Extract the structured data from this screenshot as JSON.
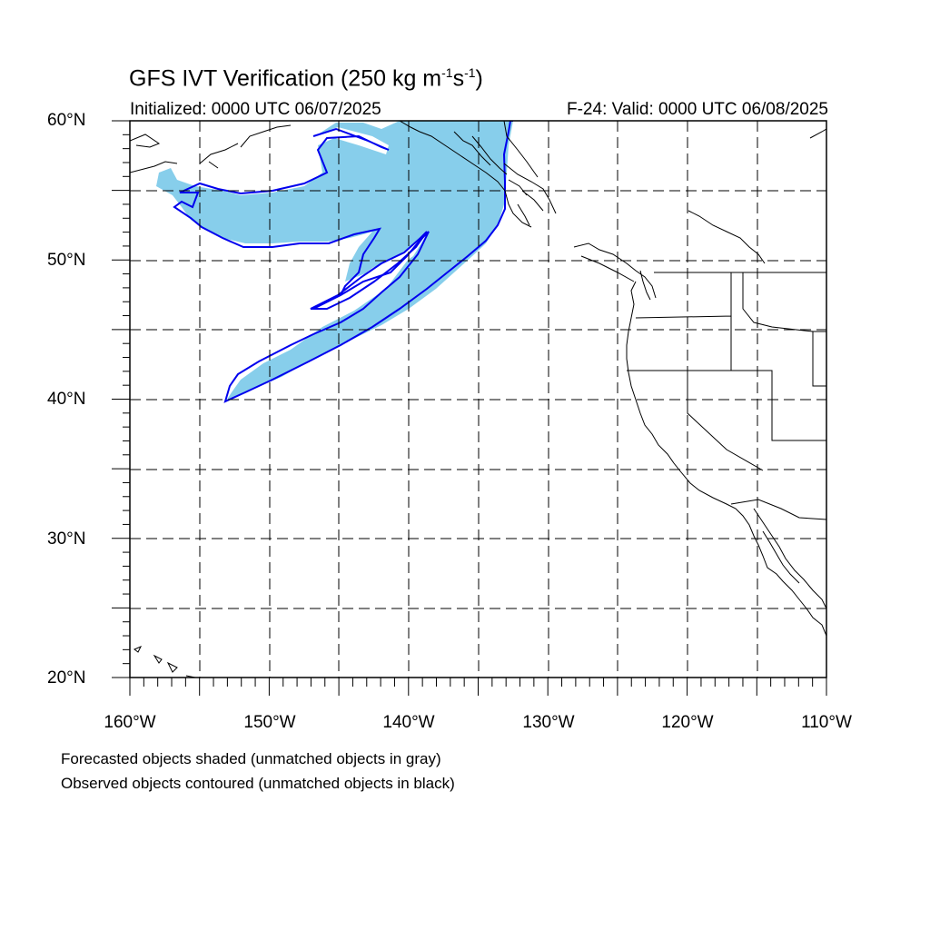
{
  "title": "GFS IVT Verification (250 kg m",
  "title_unit_exp1": "-1",
  "title_mid": "s",
  "title_unit_exp2": "-1",
  "title_close": ")",
  "initialized": "Initialized: 0000 UTC 06/07/2025",
  "valid": "F-24: Valid: 0000 UTC 06/08/2025",
  "lat_labels": [
    "60°N",
    "50°N",
    "40°N",
    "30°N",
    "20°N"
  ],
  "lon_labels": [
    "160°W",
    "150°W",
    "140°W",
    "130°W",
    "120°W",
    "110°W"
  ],
  "notes": [
    "Forecasted objects shaded (unmatched objects in gray)",
    "Observed objects contoured (unmatched objects in black)"
  ],
  "map": {
    "lon_range": [
      -160,
      -110
    ],
    "lat_range": [
      20,
      60
    ],
    "forecast_fill_color": "#87ceeb",
    "observed_contour_color": "#0000ee",
    "grid_style": "dashed",
    "grid_lons": [
      -155,
      -150,
      -145,
      -140,
      -135,
      -130,
      -125,
      -120,
      -115
    ],
    "grid_lats": [
      25,
      30,
      35,
      40,
      45,
      50,
      55
    ]
  }
}
